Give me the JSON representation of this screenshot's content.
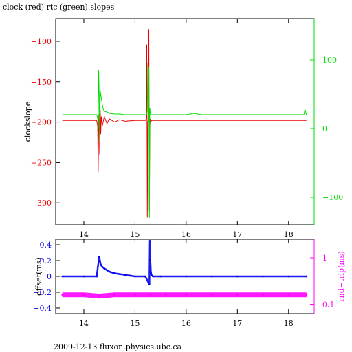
{
  "page": {
    "title": "clock (red) rtc (green) slopes",
    "footer": "2009-12-13 fluxon.physics.ubc.ca"
  },
  "colors": {
    "clock": "#ee0000",
    "rtc": "#00dd00",
    "offset": "#0000ee",
    "rndtrip": "#ff00ff",
    "axis": "#000000"
  },
  "chart_data": [
    {
      "type": "line",
      "title": "clock (red) rtc (green) slopes",
      "ylabel": "clockslope",
      "y2label": "",
      "xlim": [
        13.45,
        18.5
      ],
      "ylim": [
        -327,
        -72
      ],
      "y2lim": [
        -140,
        160
      ],
      "x_ticks": [
        14,
        15,
        16,
        17,
        18
      ],
      "y_ticks": [
        -300,
        -250,
        -200,
        -150,
        -100
      ],
      "y2_ticks": [
        -100,
        0,
        100
      ],
      "tick_labels": {
        "x": [
          "14",
          "15",
          "16",
          "17",
          "18"
        ],
        "y": [
          "−300",
          "−250",
          "−200",
          "−150",
          "−100"
        ],
        "y2": [
          "−100",
          "0",
          "100"
        ]
      },
      "series": [
        {
          "key": "clock",
          "axis": "left",
          "x": [
            13.58,
            14.25,
            14.27,
            14.28,
            14.29,
            14.3,
            14.31,
            14.32,
            14.33,
            14.34,
            14.36,
            14.4,
            14.45,
            14.5,
            14.6,
            14.7,
            14.8,
            15.0,
            15.2,
            15.22,
            15.23,
            15.24,
            15.25,
            15.26,
            15.27,
            15.28,
            15.29,
            15.3,
            15.31,
            15.32,
            15.4,
            15.6,
            16.0,
            16.5,
            17.0,
            17.5,
            18.0,
            18.35
          ],
          "y": [
            -198,
            -198,
            -205,
            -262,
            -208,
            -190,
            -240,
            -185,
            -215,
            -193,
            -205,
            -193,
            -202,
            -196,
            -200,
            -197,
            -199,
            -198,
            -198,
            -196,
            -104,
            -318,
            -200,
            -195,
            -85,
            -310,
            -205,
            -196,
            -200,
            -198,
            -198,
            -198,
            -198,
            -198,
            -198,
            -198,
            -198,
            -198
          ]
        },
        {
          "key": "rtc",
          "axis": "right",
          "x": [
            13.58,
            14.25,
            14.27,
            14.28,
            14.29,
            14.3,
            14.31,
            14.32,
            14.34,
            14.36,
            14.38,
            14.4,
            14.45,
            14.5,
            14.6,
            14.7,
            14.8,
            15.0,
            15.2,
            15.22,
            15.24,
            15.25,
            15.26,
            15.27,
            15.28,
            15.29,
            15.3,
            15.32,
            15.5,
            16.0,
            16.15,
            16.3,
            17.0,
            17.5,
            18.0,
            18.3,
            18.32,
            18.35
          ],
          "y": [
            20,
            20,
            15,
            0,
            85,
            50,
            -20,
            55,
            45,
            35,
            28,
            25,
            24,
            22,
            21,
            21,
            20,
            20,
            20,
            19,
            25,
            95,
            10,
            90,
            -130,
            30,
            22,
            20,
            20,
            20,
            22,
            20,
            20,
            20,
            20,
            20,
            28,
            20
          ]
        }
      ]
    },
    {
      "type": "scatter",
      "ylabel": "offset(ms)",
      "y2label": "rnd−trip(ms)",
      "y2_scale": "log",
      "xlim": [
        13.45,
        18.5
      ],
      "ylim": [
        -0.47,
        0.47
      ],
      "y2lim_log10": [
        -1.2,
        0.4
      ],
      "x_ticks": [
        14,
        15,
        16,
        17,
        18
      ],
      "y_ticks": [
        -0.4,
        -0.2,
        0,
        0.2,
        0.4
      ],
      "y2_ticks": [
        0.1,
        1
      ],
      "tick_labels": {
        "x": [
          "14",
          "15",
          "16",
          "17",
          "18"
        ],
        "y": [
          "−0.4",
          "−0.2",
          "0",
          "0.2",
          "0.4"
        ],
        "y2": [
          "0.1",
          "1"
        ]
      },
      "series": [
        {
          "key": "offset",
          "axis": "left",
          "x": [
            13.58,
            14.0,
            14.25,
            14.3,
            14.33,
            14.36,
            14.4,
            14.45,
            14.5,
            14.55,
            14.6,
            14.7,
            14.8,
            14.9,
            15.0,
            15.2,
            15.28,
            15.29,
            15.3,
            15.31,
            15.32,
            15.35,
            15.5,
            16.0,
            16.5,
            17.0,
            17.5,
            18.0,
            18.35
          ],
          "y": [
            0.0,
            0.0,
            0.0,
            0.25,
            0.15,
            0.12,
            0.1,
            0.08,
            0.06,
            0.05,
            0.04,
            0.03,
            0.02,
            0.01,
            0.0,
            0.0,
            -0.1,
            0.45,
            0.2,
            0.05,
            0.02,
            0.0,
            0.0,
            0.0,
            0.0,
            0.0,
            0.0,
            0.0,
            0.0
          ]
        },
        {
          "key": "rndtrip",
          "axis": "right",
          "x": [
            13.58,
            14.0,
            14.3,
            14.6,
            15.0,
            15.3,
            15.6,
            16.0,
            16.5,
            17.0,
            17.5,
            18.0,
            18.35
          ],
          "y": [
            0.16,
            0.16,
            0.15,
            0.16,
            0.16,
            0.16,
            0.16,
            0.16,
            0.16,
            0.16,
            0.16,
            0.16,
            0.16
          ]
        }
      ]
    }
  ]
}
